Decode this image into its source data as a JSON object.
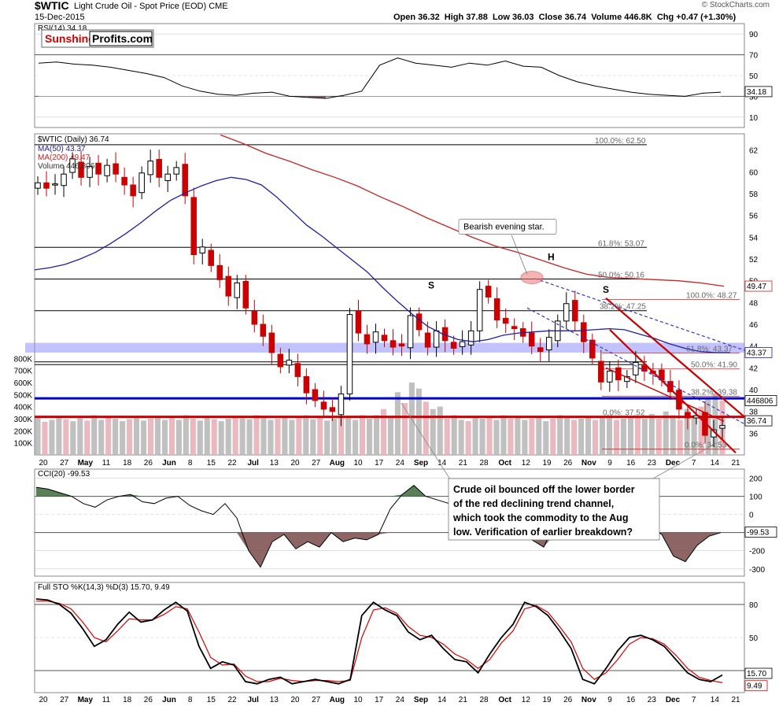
{
  "header": {
    "symbol": "$WTIC",
    "name": "Light Crude Oil - Spot Price (EOD)",
    "exchange": "CME",
    "date": "15-Dec-2015",
    "ohlc": "Open 36.32  High 37.88  Low 36.03  Close 36.74  Volume 446.8K  Chg +0.47 (+1.30%)",
    "watermark": "© StockCharts.com"
  },
  "logo": {
    "part1": "Sunshine",
    "part2": "Profits.com"
  },
  "colors": {
    "price_up": "#000000",
    "price_down": "#cc0000",
    "ma50": "#1f1fa8",
    "ma200": "#cc2222",
    "support_blue": "#0000cc",
    "support_red": "#cc0000",
    "volume_up": "#b9b9b9",
    "volume_down": "#e8b0b8",
    "osc_positive": "#3b6b3b",
    "osc_negative": "#7a4a4a"
  },
  "chart_data": [
    {
      "type": "line",
      "panel": "RSI",
      "legend": "RSI(14) 34.18",
      "y_ticks": [
        90,
        70,
        50,
        30,
        10
      ],
      "ylim": [
        0,
        100
      ],
      "last_value_label": "34.18",
      "series": [
        {
          "name": "RSI(14)",
          "values": [
            62,
            63,
            61,
            60,
            58,
            55,
            52,
            48,
            40,
            35,
            32,
            31,
            33,
            34,
            30,
            29,
            28,
            31,
            35,
            60,
            67,
            62,
            60,
            58,
            62,
            60,
            64,
            59,
            58,
            50,
            44,
            40,
            37,
            34,
            32,
            31,
            30,
            33,
            34
          ]
        }
      ]
    },
    {
      "type": "candlestick",
      "panel": "Price",
      "legend": [
        "$WTIC (Daily) 36.74",
        "MA(50) 43.37",
        "MA(200) 49.47",
        "Volume 446,806"
      ],
      "x_tick_labels": [
        "20",
        "27",
        "May",
        "11",
        "18",
        "26",
        "Jun",
        "8",
        "15",
        "22",
        "Jul",
        "13",
        "20",
        "27",
        "Aug",
        "10",
        "17",
        "24",
        "Sep",
        "14",
        "21",
        "28",
        "Oct",
        "12",
        "19",
        "26",
        "Nov",
        "9",
        "16",
        "23",
        "Dec",
        "7",
        "14",
        "21"
      ],
      "y_ticks": [
        62,
        60,
        58,
        56,
        54,
        52,
        50,
        48,
        46,
        44,
        42,
        40,
        38,
        36
      ],
      "ylim": [
        34,
        63.5
      ],
      "close_series": [
        59,
        58.5,
        58.9,
        59.8,
        61.2,
        59.5,
        60.5,
        59.8,
        60.6,
        59.8,
        58.8,
        57.8,
        59.9,
        61,
        59.5,
        59.8,
        60.4,
        57.8,
        52.4,
        53.1,
        51.4,
        50.1,
        48.6,
        49.8,
        47.5,
        46,
        44.9,
        43.4,
        42.1,
        42.7,
        41.2,
        39.7,
        39,
        38.2,
        38,
        39.6,
        46.9,
        45.2,
        44.2,
        45.3,
        44.5,
        43.9,
        44,
        46.8,
        45.5,
        43.9,
        45.4,
        44.5,
        43.8,
        44.4,
        45.4,
        49.2,
        48.5,
        46.4,
        46.1,
        45.6,
        44.9,
        44,
        43.5,
        44.8,
        46.3,
        47.9,
        46.3,
        44.4,
        42.9,
        40.7,
        41.7,
        40.9,
        41.2,
        42.5,
        41.7,
        41.5,
        40.9,
        39.8,
        38.2,
        37.4,
        37.6,
        35.8,
        36.3,
        36.7
      ],
      "ma50_values": [
        51,
        51.2,
        51.5,
        52,
        52.6,
        53.4,
        54.3,
        55.3,
        56.4,
        57.4,
        58.1,
        58.7,
        59.2,
        59.5,
        59.3,
        58.8,
        57.7,
        56.4,
        55.1,
        54.1,
        53,
        51.9,
        50.8,
        49.4,
        48.1,
        46.9,
        45.8,
        45.1,
        44.6,
        44.4,
        44.6,
        45,
        45.2,
        45.3,
        45.4,
        45.4,
        45.4,
        45.5,
        45.6,
        45.5,
        45.1,
        44.7,
        44.2,
        43.8,
        43.5,
        43.4,
        43.4
      ],
      "ma200_values": [
        63.4,
        62.6,
        61.7,
        61,
        60.2,
        59.5,
        58.7,
        57.7,
        56.8,
        55.8,
        54.9,
        54,
        53.2,
        52.6,
        51.9,
        51.2,
        50.6,
        50.3,
        50.2,
        50.1,
        50,
        49.8,
        49.5
      ],
      "annotations": [
        {
          "text": "100.0%: 62.50",
          "value": 62.5
        },
        {
          "text": "61.8%: 53.07",
          "value": 53.07
        },
        {
          "text": "50.0%: 50.16",
          "value": 50.16
        },
        {
          "text": "38.2%: 47.25",
          "value": 47.25
        },
        {
          "text": "100.0%: 48.27",
          "value": 48.27
        },
        {
          "text": "61.8%: 43.37",
          "value": 43.37
        },
        {
          "text": "50.0%: 41.90",
          "value": 41.9
        },
        {
          "text": "38.2%: 39.38",
          "value": 39.38
        },
        {
          "text": "0.0%: 37.52",
          "value": 37.52
        },
        {
          "text": "0.0%: 34.53",
          "value": 34.53
        },
        {
          "text": "Bearish evening star."
        },
        {
          "text": "S"
        },
        {
          "text": "H"
        },
        {
          "text": "S"
        }
      ],
      "right_labels": [
        "49.47",
        "43.37",
        "36.74",
        "446806"
      ],
      "volume": {
        "y_ticks": [
          "800K",
          "700K",
          "600K",
          "500K",
          "400K",
          "300K",
          "200K",
          "100K"
        ],
        "ylim": [
          0,
          900000
        ],
        "values_k": [
          310,
          275,
          290,
          320,
          295,
          280,
          305,
          285,
          330,
          290,
          315,
          300,
          280,
          295,
          310,
          285,
          300,
          320,
          290,
          305,
          290,
          330,
          300,
          285,
          310,
          295,
          280,
          300,
          320,
          305,
          295,
          330,
          310,
          290,
          300,
          320,
          290,
          305,
          330,
          295,
          310,
          285,
          300,
          320,
          310,
          290,
          330,
          300,
          330,
          380,
          310,
          520,
          430,
          600,
          550,
          440,
          380,
          400,
          300,
          330,
          290,
          280,
          310,
          300,
          320,
          290,
          330,
          300,
          310,
          290,
          300,
          320,
          280,
          300,
          330,
          310,
          290,
          300,
          320,
          290,
          310,
          330,
          290,
          300,
          320,
          310,
          300,
          340,
          300,
          360,
          330,
          290,
          380,
          330,
          400,
          460,
          510,
          450
        ]
      }
    },
    {
      "type": "line",
      "panel": "CCI",
      "legend": "CCI(20) -99.53",
      "y_ticks": [
        200,
        100,
        0,
        -100,
        -200,
        -300
      ],
      "ylim": [
        -340,
        250
      ],
      "last_value_label": "-99.53",
      "series": [
        {
          "name": "CCI(20)",
          "values": [
            150,
            140,
            120,
            100,
            60,
            40,
            80,
            100,
            110,
            70,
            60,
            90,
            100,
            50,
            20,
            0,
            60,
            -20,
            -200,
            -290,
            -150,
            -110,
            -190,
            -150,
            -180,
            -100,
            -150,
            -130,
            -140,
            -110,
            30,
            110,
            160,
            100,
            80,
            60,
            30,
            40,
            20,
            -10,
            20,
            -60,
            -140,
            -180,
            -40,
            80,
            90,
            60,
            50,
            100,
            110,
            40,
            -60,
            -110,
            -230,
            -260,
            -170,
            -120,
            -100
          ]
        }
      ]
    },
    {
      "type": "line",
      "panel": "Stochastic",
      "legend": "Full STO %K(14,3) %D(3) 15.70, 9.49",
      "y_ticks": [
        80,
        50,
        20
      ],
      "ylim": [
        0,
        100
      ],
      "last_value_label": [
        "15.70",
        "9.49"
      ],
      "series": [
        {
          "name": "%K(14,3)",
          "values": [
            85,
            84,
            80,
            72,
            58,
            42,
            48,
            62,
            73,
            64,
            66,
            75,
            82,
            74,
            42,
            22,
            28,
            25,
            10,
            8,
            12,
            14,
            8,
            10,
            12,
            10,
            8,
            12,
            70,
            82,
            75,
            70,
            55,
            48,
            52,
            40,
            30,
            28,
            18,
            35,
            50,
            62,
            82,
            78,
            70,
            56,
            40,
            12,
            8,
            22,
            38,
            50,
            52,
            48,
            42,
            30,
            18,
            12,
            10,
            16
          ]
        },
        {
          "name": "%D(3)",
          "values": [
            83,
            83,
            81,
            76,
            64,
            50,
            46,
            56,
            67,
            66,
            66,
            71,
            78,
            76,
            55,
            32,
            25,
            26,
            15,
            10,
            10,
            13,
            11,
            10,
            11,
            11,
            10,
            11,
            50,
            75,
            77,
            72,
            60,
            52,
            50,
            44,
            35,
            30,
            22,
            30,
            45,
            56,
            76,
            79,
            73,
            60,
            46,
            22,
            12,
            18,
            30,
            44,
            50,
            49,
            44,
            34,
            22,
            14,
            11,
            9
          ]
        }
      ]
    }
  ],
  "callout": {
    "line1": "Crude oil bounced off the lower border",
    "line2": "of the red declining trend channel,",
    "line3": "which took the commodity to the Aug",
    "line4": "low. Verification of earlier breakdown?"
  }
}
